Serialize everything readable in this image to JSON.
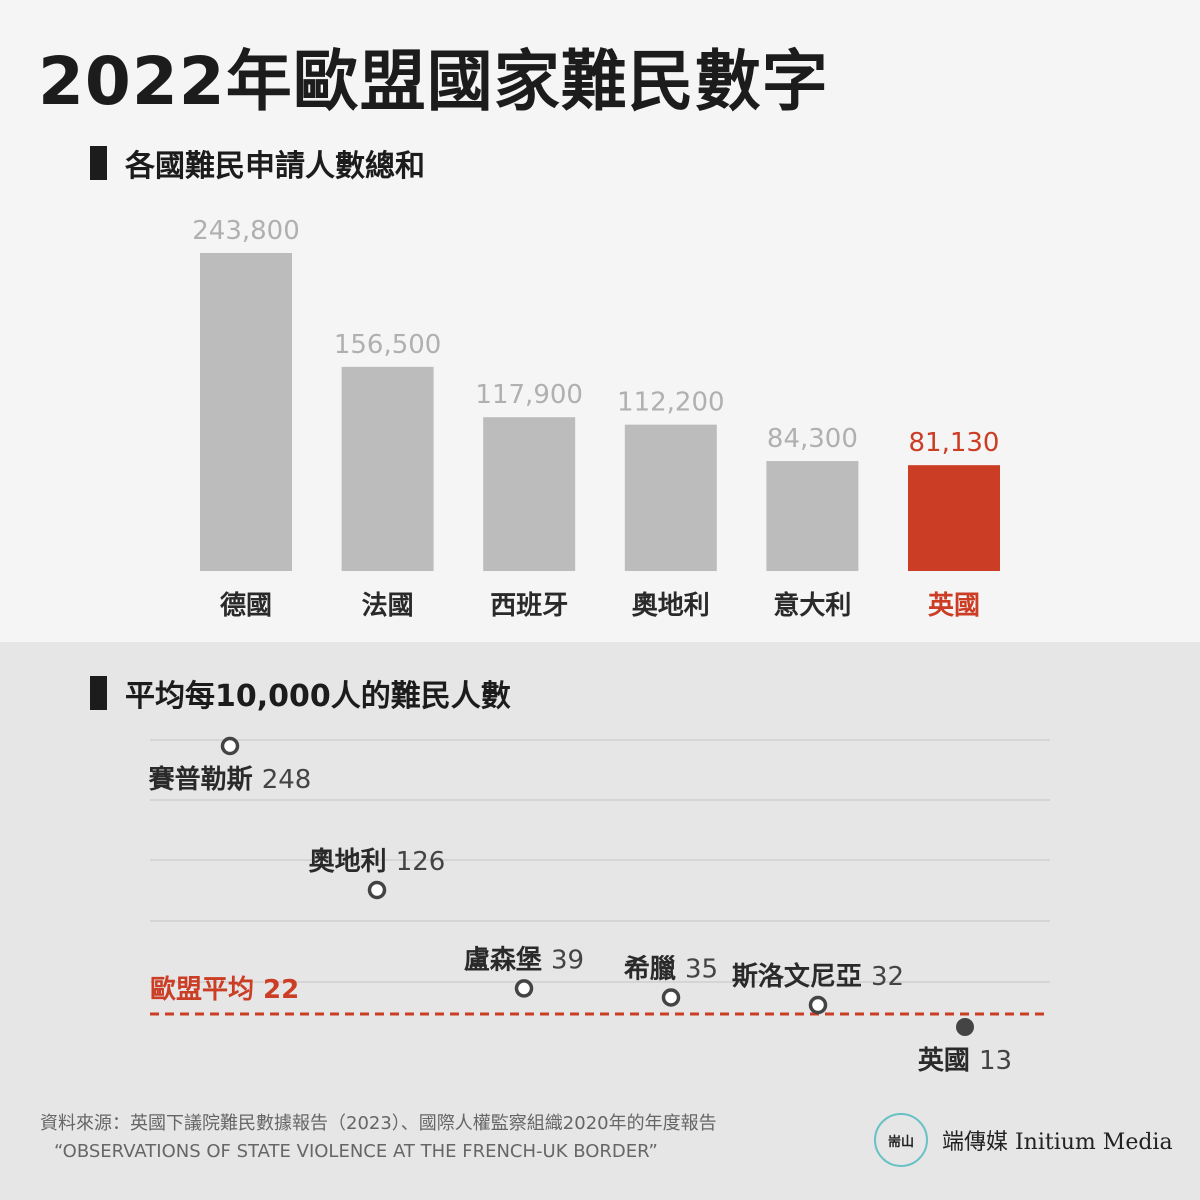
{
  "title": "2022年歐盟國家難民數字",
  "section1": {
    "label": "各國難民申請人數總和"
  },
  "section2": {
    "label": "平均每10,000人的難民人數"
  },
  "colors": {
    "bar": "#bcbcbc",
    "highlight": "#cc3d25",
    "text": "#1c1c1c",
    "muted": "#b0b0b0",
    "grid": "#cfcfcf"
  },
  "chart_data": [
    {
      "type": "bar",
      "title": "各國難民申請人數總和",
      "categories": [
        "德國",
        "法國",
        "西班牙",
        "奧地利",
        "意大利",
        "英國"
      ],
      "values": [
        243800,
        156500,
        117900,
        112200,
        84300,
        81130
      ],
      "value_labels": [
        "243,800",
        "156,500",
        "117,900",
        "112,200",
        "84,300",
        "81,130"
      ],
      "highlight": "英國",
      "ylim": [
        0,
        243800
      ]
    },
    {
      "type": "scatter",
      "title": "平均每10,000人的難民人數",
      "points": [
        {
          "name": "賽普勒斯",
          "value": 248,
          "value_label": "248"
        },
        {
          "name": "奧地利",
          "value": 126,
          "value_label": "126"
        },
        {
          "name": "盧森堡",
          "value": 39,
          "value_label": "39"
        },
        {
          "name": "希臘",
          "value": 35,
          "value_label": "35"
        },
        {
          "name": "斯洛文尼亞",
          "value": 32,
          "value_label": "32"
        },
        {
          "name": "英國",
          "value": 13,
          "value_label": "13",
          "highlight": true
        }
      ],
      "average": {
        "label": "歐盟平均 22",
        "value": 22
      },
      "grid": true
    }
  ],
  "source": {
    "line1": "資料來源：英國下議院難民數據報告（2023）、國際人權監察組織2020年的年度報告",
    "line2": "“OBSERVATIONS OF STATE VIOLENCE AT THE FRENCH-UK BORDER”"
  },
  "logo": {
    "mark": "耑山",
    "text": "端傳媒 Initium Media"
  }
}
